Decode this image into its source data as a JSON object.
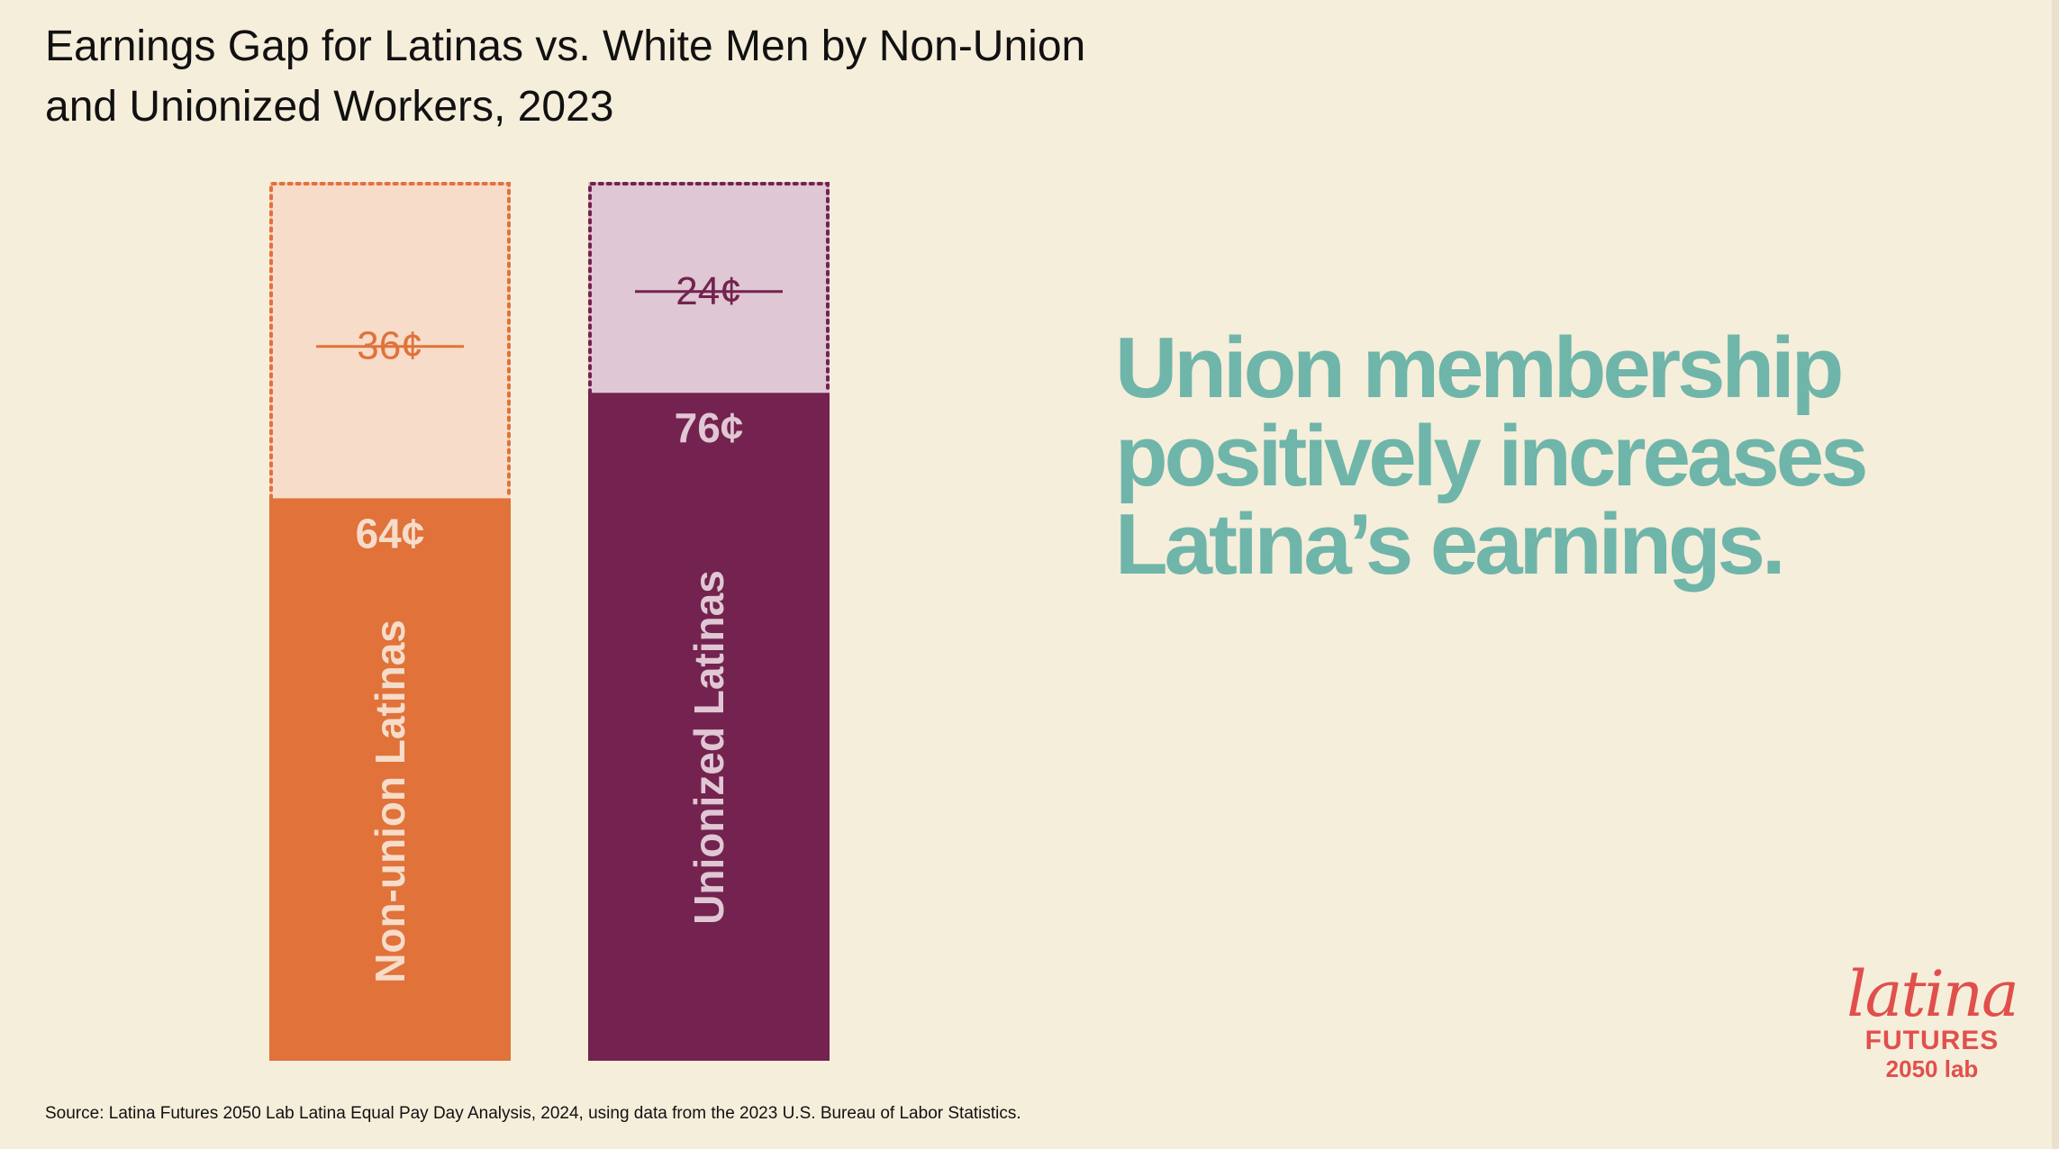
{
  "title": "Earnings Gap for Latinas vs. White Men by Non-Union and Unionized Workers, 2023",
  "headline": "Union membership positively increases Latina’s earnings.",
  "source": "Source: Latina Futures 2050 Lab Latina Equal Pay Day Analysis, 2024, using data from the 2023 U.S. Bureau of Labor Statistics.",
  "logo": {
    "line1": "latina",
    "line2": "FUTURES",
    "line3": "2050 lab"
  },
  "colors": {
    "background": "#f5eedb",
    "nonunion_earned": "#e0723a",
    "nonunion_gap": "#f6dcc9",
    "union_earned": "#74224f",
    "union_gap": "#dfc7d3",
    "headline": "#6fb5aa",
    "logo": "#e14f4c"
  },
  "chart_data": {
    "type": "bar",
    "stacked": true,
    "categories": [
      "Non-union Latinas",
      "Unionized Latinas"
    ],
    "ylim": [
      0,
      100
    ],
    "bars": [
      {
        "category": "Non-union Latinas",
        "earned": 64,
        "gap": 36,
        "earned_label": "64¢",
        "gap_label": "36¢"
      },
      {
        "category": "Unionized Latinas",
        "earned": 76,
        "gap": 24,
        "earned_label": "76¢",
        "gap_label": "24¢"
      }
    ]
  }
}
